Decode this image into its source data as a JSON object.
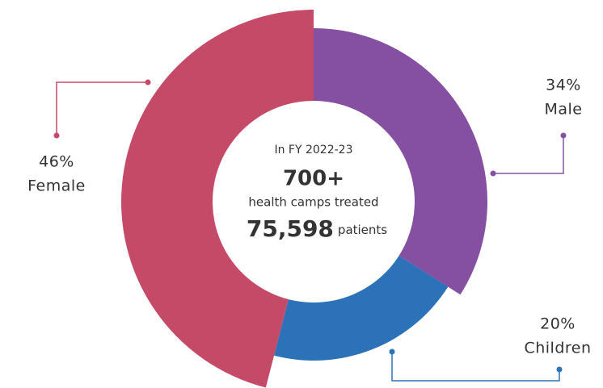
{
  "chart_data": {
    "type": "pie",
    "donut": true,
    "categories": [
      "Male",
      "Children",
      "Female"
    ],
    "values": [
      34,
      20,
      46
    ],
    "value_labels": [
      "34%",
      "20%",
      "46%"
    ],
    "colors": [
      "#8550a1",
      "#2b72b9",
      "#c54a68"
    ],
    "annotations": [
      "In FY 2022-23",
      "700+",
      "health camps treated",
      "75,598",
      "patients"
    ]
  }
}
